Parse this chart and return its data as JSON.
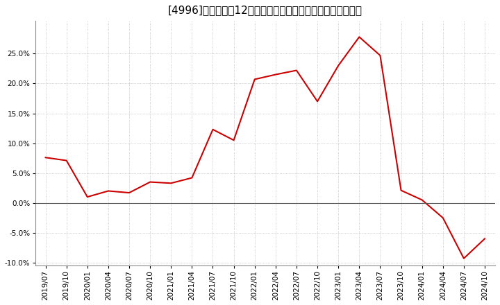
{
  "title": "[4996]　売上高の12か月移動合計の対前年同期増減率の推移",
  "line_color": "#cc0000",
  "background_color": "#ffffff",
  "plot_bg_color": "#ffffff",
  "grid_color": "#aaaaaa",
  "zero_line_color": "#555555",
  "ylim": [
    -0.105,
    0.305
  ],
  "yticks": [
    -0.1,
    -0.05,
    0.0,
    0.05,
    0.1,
    0.15,
    0.2,
    0.25
  ],
  "dates": [
    "2019/07",
    "2019/10",
    "2020/01",
    "2020/04",
    "2020/07",
    "2020/10",
    "2021/01",
    "2021/04",
    "2021/07",
    "2021/10",
    "2022/01",
    "2022/04",
    "2022/07",
    "2022/10",
    "2023/01",
    "2023/04",
    "2023/07",
    "2023/10",
    "2024/01",
    "2024/04",
    "2024/07",
    "2024/10"
  ],
  "values": [
    0.076,
    0.071,
    0.01,
    0.02,
    0.017,
    0.035,
    0.033,
    0.042,
    0.123,
    0.105,
    0.207,
    0.215,
    0.222,
    0.17,
    0.23,
    0.278,
    0.247,
    0.021,
    0.005,
    -0.025,
    -0.093,
    -0.06
  ],
  "xtick_labels": [
    "2019/07",
    "2019/10",
    "2020/01",
    "2020/04",
    "2020/07",
    "2020/10",
    "2021/01",
    "2021/04",
    "2021/07",
    "2021/10",
    "2022/01",
    "2022/04",
    "2022/07",
    "2022/10",
    "2023/01",
    "2023/04",
    "2023/07",
    "2023/10",
    "2024/01",
    "2024/04",
    "2024/07",
    "2024/10"
  ],
  "line_width": 1.5,
  "title_fontsize": 11,
  "tick_fontsize": 7.5
}
